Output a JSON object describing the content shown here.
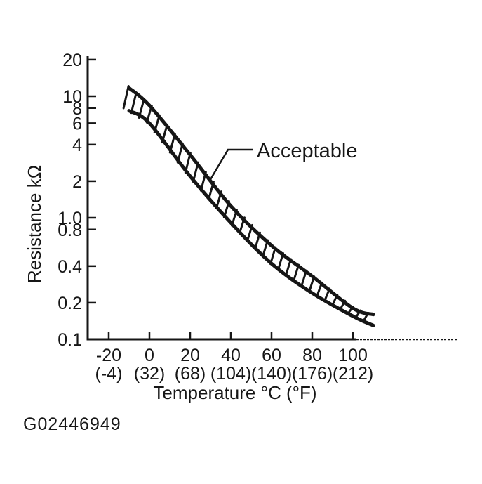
{
  "figure": {
    "code": "G02446949"
  },
  "chart_data": {
    "type": "line",
    "title": "",
    "xlabel": "Temperature °C (°F)",
    "ylabel": "Resistance kΩ",
    "x_axis": {
      "unit_primary": "°C",
      "unit_secondary": "°F",
      "range_c": [
        -30,
        150
      ]
    },
    "y_axis": {
      "scale": "log",
      "unit": "kΩ",
      "range": [
        0.1,
        20
      ]
    },
    "grid": false,
    "legend": "none",
    "x_ticks": [
      {
        "value": -20,
        "label_c": "-20",
        "label_f": "(-4)"
      },
      {
        "value": 0,
        "label_c": "0",
        "label_f": "(32)"
      },
      {
        "value": 20,
        "label_c": "20",
        "label_f": "(68)"
      },
      {
        "value": 40,
        "label_c": "40",
        "label_f": "(104)"
      },
      {
        "value": 60,
        "label_c": "60",
        "label_f": "(140)"
      },
      {
        "value": 80,
        "label_c": "80",
        "label_f": "(176)"
      },
      {
        "value": 100,
        "label_c": "100",
        "label_f": "(212)"
      }
    ],
    "y_ticks": [
      {
        "value": 20,
        "label": "20"
      },
      {
        "value": 10,
        "label": "10"
      },
      {
        "value": 8,
        "label": "8"
      },
      {
        "value": 6,
        "label": "6"
      },
      {
        "value": 4,
        "label": "4"
      },
      {
        "value": 2,
        "label": "2"
      },
      {
        "value": 1,
        "label": "1.0"
      },
      {
        "value": 0.8,
        "label": "0.8"
      },
      {
        "value": 0.4,
        "label": "0.4"
      },
      {
        "value": 0.2,
        "label": "0.2"
      },
      {
        "value": 0.1,
        "label": "0.1"
      }
    ],
    "band": {
      "label": "Acceptable",
      "hatched": true,
      "temperature_c": [
        -10,
        0,
        20,
        40,
        60,
        80,
        100,
        110
      ],
      "upper_kohm": [
        11.7,
        8.4,
        3.3,
        1.25,
        0.59,
        0.33,
        0.18,
        0.16
      ],
      "lower_kohm": [
        7.6,
        6.0,
        2.2,
        0.91,
        0.42,
        0.24,
        0.155,
        0.13
      ]
    }
  }
}
